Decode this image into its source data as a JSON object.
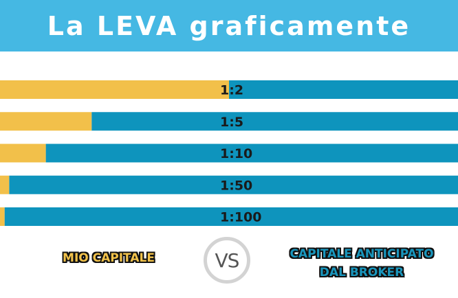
{
  "title": "La LEVA graficamente",
  "chart_data": {
    "type": "bar",
    "orientation": "horizontal",
    "stacked": true,
    "normalized": true,
    "categories": [
      "1:2",
      "1:5",
      "1:10",
      "1:50",
      "1:100"
    ],
    "series": [
      {
        "name": "MIO CAPITALE",
        "values": [
          0.5,
          0.2,
          0.1,
          0.02,
          0.01
        ]
      },
      {
        "name": "CAPITALE ANTICIPATO DAL BROKER",
        "values": [
          0.5,
          0.8,
          0.9,
          0.98,
          0.99
        ]
      }
    ],
    "colors": {
      "mio_capitale": "#f2c04a",
      "broker": "#0e94bd"
    },
    "legend": {
      "position": "bottom",
      "separator": "VS"
    }
  },
  "legend": {
    "left": "MIO CAPITALE",
    "vs": "VS",
    "right_line1": "CAPITALE ANTICIPATO",
    "right_line2": "DAL BROKER"
  }
}
